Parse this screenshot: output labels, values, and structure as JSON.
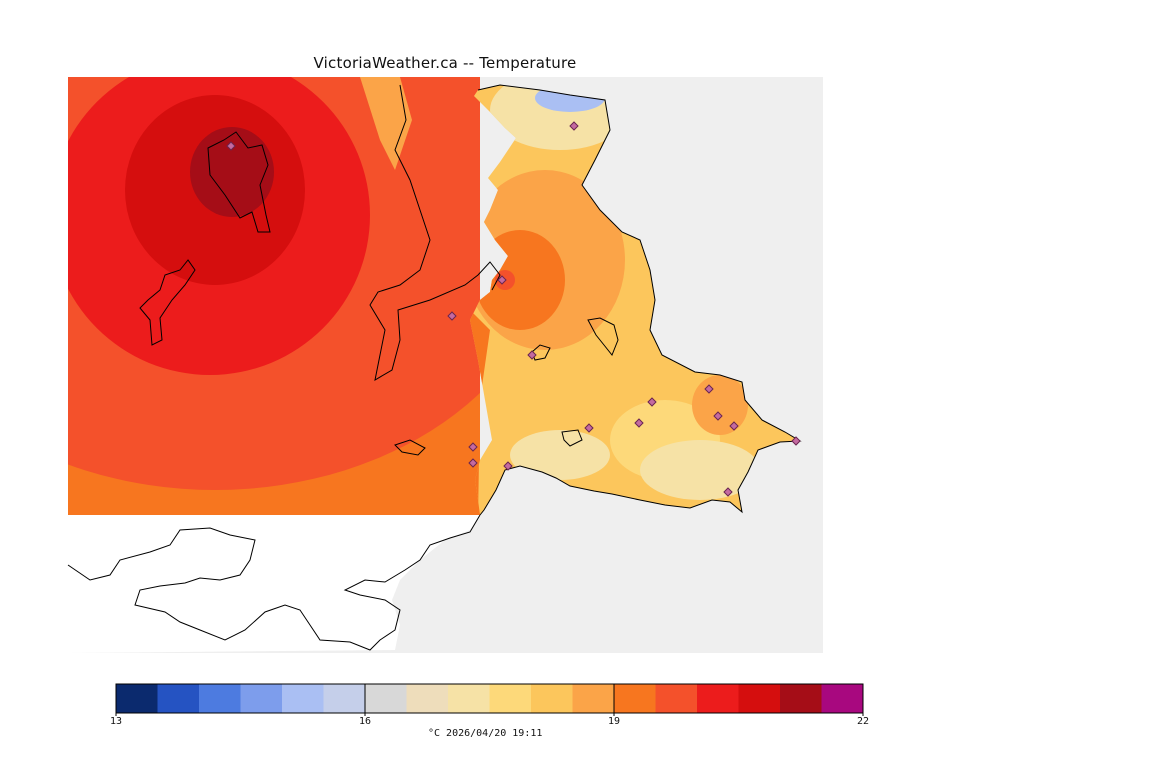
{
  "title": "VictoriaWeather.ca -- Temperature",
  "colorbar": {
    "min": 13,
    "max": 22,
    "tick_labels": [
      "13",
      "16",
      "19",
      "22"
    ],
    "unit_and_time": "°C  2026/04/20 19:11",
    "colors": [
      "#0b2a6e",
      "#2553c2",
      "#4d7be0",
      "#7d9dec",
      "#aabff3",
      "#c5cfea",
      "#d8d8d8",
      "#eeddbb",
      "#f6e2a6",
      "#fdd97a",
      "#fcc65c",
      "#fba448",
      "#f7761f",
      "#f4512b",
      "#ec1c1c",
      "#d50e0e",
      "#a50d17",
      "#a8087f"
    ]
  },
  "map": {
    "land_color": "#efefef",
    "water_color": "#ffffff",
    "station_marker": "diamond-icon",
    "station_count": 16
  }
}
